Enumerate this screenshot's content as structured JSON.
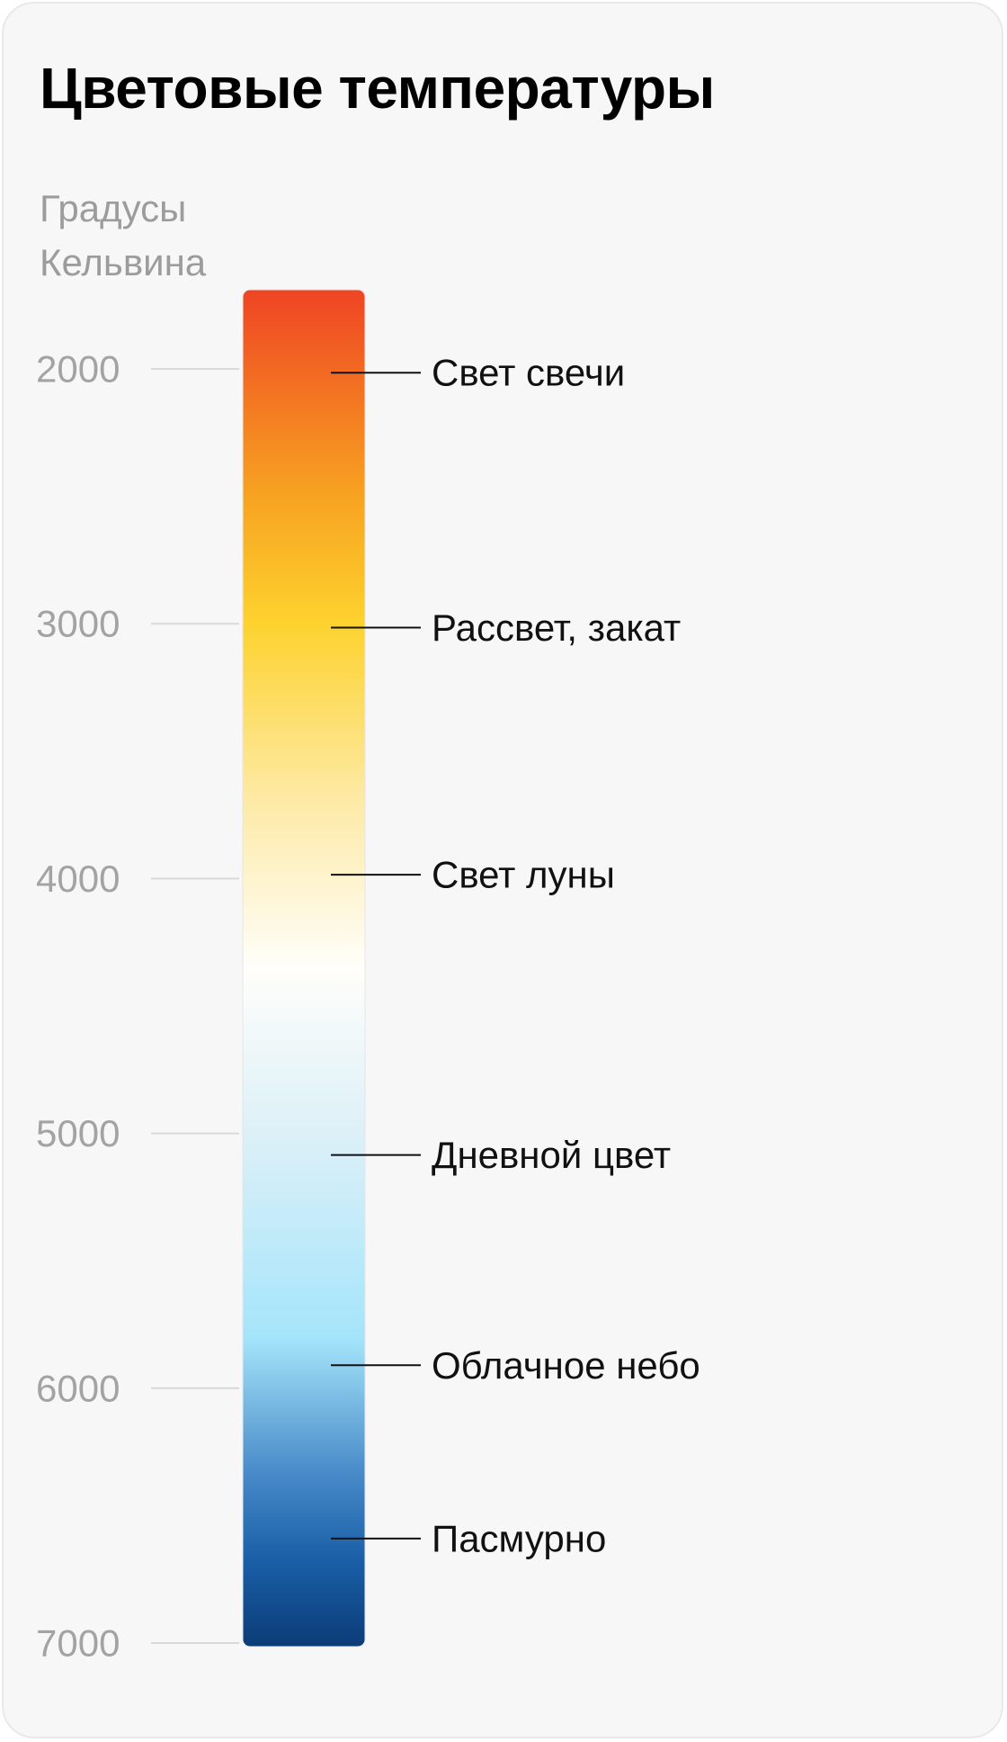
{
  "title": "Цветовые температуры",
  "chart_data": {
    "type": "gradient-scale",
    "title": "Цветовые температуры",
    "ylabel": [
      "Градусы",
      "Кельвина"
    ],
    "ylim": [
      1700,
      7000
    ],
    "ticks": [
      2000,
      3000,
      4000,
      5000,
      6000,
      7000
    ],
    "tick_labels": [
      "2000",
      "3000",
      "4000",
      "5000",
      "6000",
      "7000"
    ],
    "gradient": [
      {
        "k": 1700,
        "color": "#ef4424"
      },
      {
        "k": 2500,
        "color": "#f7a221"
      },
      {
        "k": 3000,
        "color": "#fdd22e"
      },
      {
        "k": 3700,
        "color": "#fdeaa7"
      },
      {
        "k": 4350,
        "color": "#fffefa"
      },
      {
        "k": 5000,
        "color": "#dcf0f8"
      },
      {
        "k": 5800,
        "color": "#a4e4fa"
      },
      {
        "k": 6300,
        "color": "#4c8ecb"
      },
      {
        "k": 6650,
        "color": "#1b60a9"
      },
      {
        "k": 7000,
        "color": "#0b3c77"
      }
    ],
    "annotations": [
      {
        "label": "Свет свечи",
        "value": 2015
      },
      {
        "label": "Рассвет, закат",
        "value": 3015
      },
      {
        "label": "Свет луны",
        "value": 3985
      },
      {
        "label": "Дневной цвет",
        "value": 5085
      },
      {
        "label": "Облачное небо",
        "value": 5910
      },
      {
        "label": "Пасмурно",
        "value": 6590
      }
    ],
    "grid": false
  }
}
